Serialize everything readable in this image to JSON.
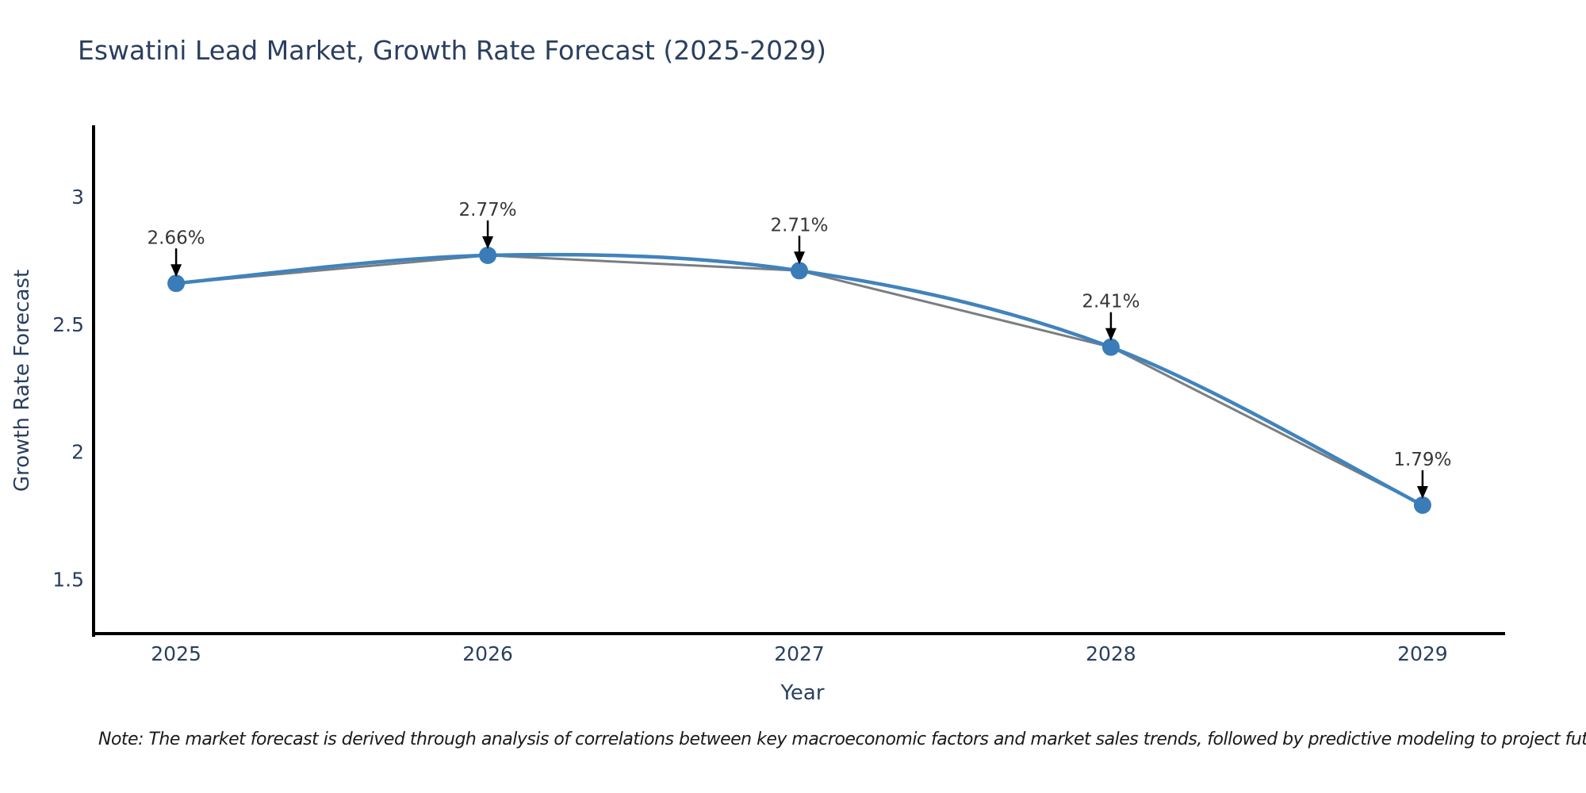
{
  "title": {
    "text": "Eswatini Lead Market, Growth Rate Forecast (2025-2029)"
  },
  "note": {
    "text": "Note: The market forecast is derived through analysis of correlations between key macroeconomic factors and market sales trends, followed by predictive modeling to project future sales"
  },
  "chart_data": {
    "type": "line",
    "title": "Eswatini Lead Market, Growth Rate Forecast (2025-2029)",
    "x": [
      2025,
      2026,
      2027,
      2028,
      2029
    ],
    "categories": [
      "2025",
      "2026",
      "2027",
      "2028",
      "2029"
    ],
    "values": [
      2.66,
      2.77,
      2.71,
      2.41,
      1.79
    ],
    "point_labels": [
      "2.66%",
      "2.77%",
      "2.71%",
      "2.41%",
      "1.79%"
    ],
    "xlabel": "Year",
    "ylabel": "Growth Rate Forecast",
    "yticks": [
      1.5,
      2,
      2.5,
      3
    ],
    "ytick_labels": [
      "1.5",
      "2",
      "2.5",
      "3"
    ],
    "xlim": [
      2024.735,
      2029.265
    ],
    "ylim": [
      1.28,
      3.28
    ],
    "grid": false,
    "legend": false,
    "line_shape": "spline",
    "colors": {
      "line": "#4083bd",
      "marker": "#3a7cb8",
      "shadow": "#63676b",
      "axis": "#000000",
      "tick_text": "#2a3f5f",
      "annotation_text": "#363636",
      "arrow": "#000000"
    }
  }
}
